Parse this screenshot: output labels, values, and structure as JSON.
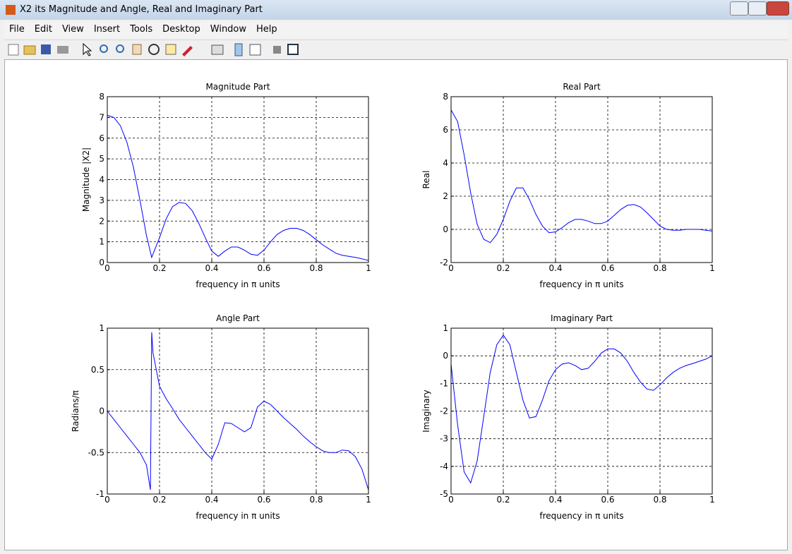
{
  "window": {
    "title": "X2 its Magnitude and Angle, Real and Imaginary Part"
  },
  "menu": [
    "File",
    "Edit",
    "View",
    "Insert",
    "Tools",
    "Desktop",
    "Window",
    "Help"
  ],
  "chart_data": [
    {
      "type": "line",
      "title": "Magnitude Part",
      "xlabel": "frequency in π units",
      "ylabel": "Magnitude  |X2|",
      "x": [
        0,
        0.025,
        0.05,
        0.075,
        0.1,
        0.125,
        0.15,
        0.17,
        0.2,
        0.225,
        0.25,
        0.275,
        0.3,
        0.325,
        0.35,
        0.375,
        0.4,
        0.425,
        0.45,
        0.475,
        0.5,
        0.525,
        0.55,
        0.575,
        0.6,
        0.625,
        0.65,
        0.675,
        0.7,
        0.725,
        0.75,
        0.775,
        0.8,
        0.825,
        0.85,
        0.875,
        0.9,
        0.925,
        0.95,
        0.975,
        1
      ],
      "values": [
        7.1,
        7.0,
        6.6,
        5.8,
        4.6,
        3.0,
        1.3,
        0.25,
        1.2,
        2.1,
        2.7,
        2.9,
        2.85,
        2.5,
        1.9,
        1.2,
        0.55,
        0.3,
        0.55,
        0.75,
        0.75,
        0.6,
        0.4,
        0.35,
        0.6,
        1.0,
        1.35,
        1.55,
        1.65,
        1.65,
        1.55,
        1.35,
        1.1,
        0.85,
        0.65,
        0.45,
        0.35,
        0.3,
        0.25,
        0.18,
        0.1
      ],
      "color": "#0000ff",
      "xlim": [
        0,
        1
      ],
      "ylim": [
        0,
        8
      ],
      "xticks": [
        0,
        0.2,
        0.4,
        0.6,
        0.8,
        1
      ],
      "yticks": [
        0,
        1,
        2,
        3,
        4,
        5,
        6,
        7,
        8
      ],
      "grid": true
    },
    {
      "type": "line",
      "title": "Real Part",
      "xlabel": "frequency in π units",
      "ylabel": "Real",
      "x": [
        0,
        0.025,
        0.05,
        0.075,
        0.1,
        0.125,
        0.15,
        0.175,
        0.2,
        0.225,
        0.25,
        0.275,
        0.3,
        0.325,
        0.35,
        0.375,
        0.4,
        0.425,
        0.45,
        0.475,
        0.5,
        0.525,
        0.55,
        0.575,
        0.6,
        0.625,
        0.65,
        0.675,
        0.7,
        0.725,
        0.75,
        0.775,
        0.8,
        0.825,
        0.85,
        0.875,
        0.9,
        0.925,
        0.95,
        0.975,
        1
      ],
      "values": [
        7.2,
        6.5,
        4.5,
        2.2,
        0.3,
        -0.6,
        -0.8,
        -0.3,
        0.6,
        1.7,
        2.5,
        2.5,
        1.8,
        0.9,
        0.2,
        -0.2,
        -0.15,
        0.1,
        0.4,
        0.6,
        0.6,
        0.5,
        0.35,
        0.35,
        0.5,
        0.85,
        1.2,
        1.45,
        1.5,
        1.35,
        1.0,
        0.6,
        0.2,
        0,
        -0.05,
        -0.05,
        0,
        0,
        0,
        -0.05,
        -0.1
      ],
      "color": "#0000ff",
      "xlim": [
        0,
        1
      ],
      "ylim": [
        -2,
        8
      ],
      "xticks": [
        0,
        0.2,
        0.4,
        0.6,
        0.8,
        1
      ],
      "yticks": [
        -2,
        0,
        2,
        4,
        6,
        8
      ],
      "grid": true
    },
    {
      "type": "line",
      "title": "Angle Part",
      "xlabel": "frequency in π units",
      "ylabel": "Radians/π",
      "x": [
        0,
        0.025,
        0.05,
        0.075,
        0.1,
        0.125,
        0.15,
        0.165,
        0.17,
        0.175,
        0.2,
        0.225,
        0.25,
        0.275,
        0.3,
        0.325,
        0.35,
        0.375,
        0.4,
        0.425,
        0.45,
        0.475,
        0.5,
        0.525,
        0.55,
        0.575,
        0.6,
        0.625,
        0.65,
        0.675,
        0.7,
        0.725,
        0.75,
        0.775,
        0.8,
        0.825,
        0.85,
        0.875,
        0.9,
        0.925,
        0.95,
        0.975,
        1
      ],
      "values": [
        0,
        -0.1,
        -0.2,
        -0.3,
        -0.4,
        -0.5,
        -0.65,
        -0.95,
        0.95,
        0.7,
        0.3,
        0.15,
        0.03,
        -0.1,
        -0.2,
        -0.3,
        -0.4,
        -0.5,
        -0.58,
        -0.4,
        -0.14,
        -0.15,
        -0.2,
        -0.25,
        -0.2,
        0.05,
        0.12,
        0.08,
        0,
        -0.08,
        -0.15,
        -0.22,
        -0.3,
        -0.37,
        -0.43,
        -0.48,
        -0.5,
        -0.5,
        -0.47,
        -0.48,
        -0.55,
        -0.7,
        -0.95
      ],
      "color": "#0000ff",
      "xlim": [
        0,
        1
      ],
      "ylim": [
        -1,
        1
      ],
      "xticks": [
        0,
        0.2,
        0.4,
        0.6,
        0.8,
        1
      ],
      "yticks": [
        -1,
        -0.5,
        0,
        0.5,
        1
      ],
      "grid": true
    },
    {
      "type": "line",
      "title": "Imaginary Part",
      "xlabel": "frequency in π units",
      "ylabel": "Imaginary",
      "x": [
        0,
        0.025,
        0.05,
        0.075,
        0.1,
        0.125,
        0.15,
        0.175,
        0.2,
        0.225,
        0.25,
        0.275,
        0.3,
        0.325,
        0.35,
        0.375,
        0.4,
        0.425,
        0.45,
        0.475,
        0.5,
        0.525,
        0.55,
        0.575,
        0.6,
        0.625,
        0.65,
        0.675,
        0.7,
        0.725,
        0.75,
        0.775,
        0.8,
        0.825,
        0.85,
        0.875,
        0.9,
        0.925,
        0.95,
        0.975,
        1
      ],
      "values": [
        -0.3,
        -2.5,
        -4.2,
        -4.6,
        -3.8,
        -2.2,
        -0.6,
        0.4,
        0.75,
        0.4,
        -0.6,
        -1.6,
        -2.25,
        -2.2,
        -1.6,
        -0.9,
        -0.5,
        -0.3,
        -0.25,
        -0.35,
        -0.5,
        -0.45,
        -0.2,
        0.1,
        0.25,
        0.25,
        0.1,
        -0.2,
        -0.6,
        -0.95,
        -1.2,
        -1.25,
        -1.05,
        -0.8,
        -0.6,
        -0.45,
        -0.35,
        -0.28,
        -0.2,
        -0.12,
        0
      ],
      "color": "#0000ff",
      "xlim": [
        0,
        1
      ],
      "ylim": [
        -5,
        1
      ],
      "xticks": [
        0,
        0.2,
        0.4,
        0.6,
        0.8,
        1
      ],
      "yticks": [
        -5,
        -4,
        -3,
        -2,
        -1,
        0,
        1
      ],
      "grid": true
    }
  ]
}
